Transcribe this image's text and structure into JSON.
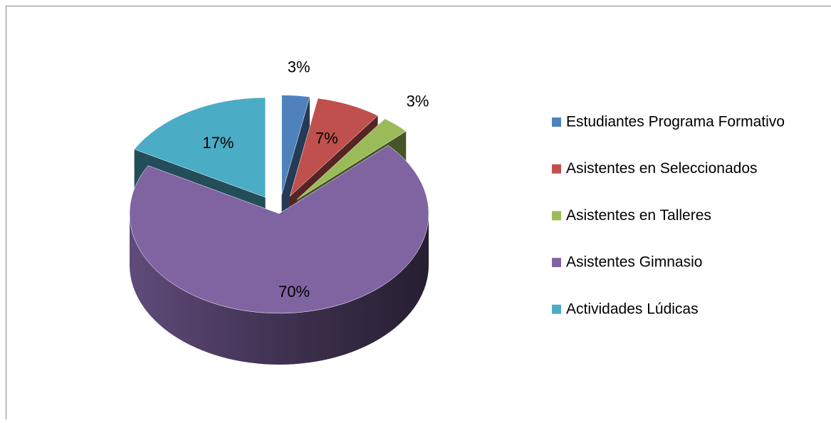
{
  "chart_data": {
    "type": "pie",
    "categories": [
      "Estudiantes Programa Formativo",
      "Asistentes en Seleccionados",
      "Asistentes en Talleres",
      "Asistentes Gimnasio",
      "Actividades Lúdicas"
    ],
    "values": [
      3,
      7,
      3,
      70,
      17
    ],
    "value_labels": [
      "3%",
      "7%",
      "3%",
      "70%",
      "17%"
    ],
    "colors": [
      "#4f81bd",
      "#c0504d",
      "#9bbb59",
      "#8064a2",
      "#4bacc6"
    ],
    "legend": "right"
  }
}
